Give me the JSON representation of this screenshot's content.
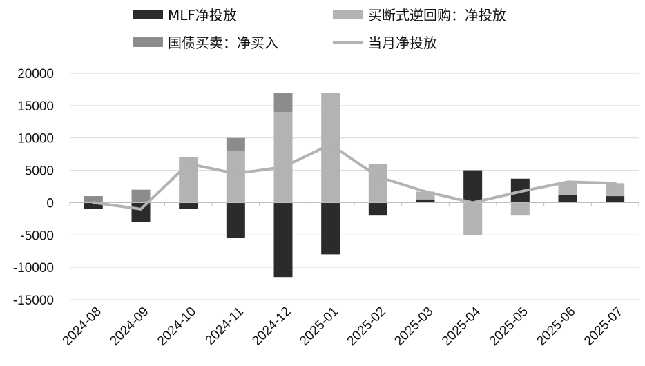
{
  "chart_data": {
    "type": "bar",
    "stacked": true,
    "categories": [
      "2024-08",
      "2024-09",
      "2024-10",
      "2024-11",
      "2024-12",
      "2025-01",
      "2025-02",
      "2025-03",
      "2025-04",
      "2025-05",
      "2025-06",
      "2025-07"
    ],
    "series": [
      {
        "name": "MLF净投放",
        "kind": "bar",
        "color": "#2b2b2b",
        "values": [
          -1000,
          -3000,
          -1000,
          -5500,
          -11500,
          -8000,
          -2000,
          500,
          5000,
          3700,
          1200,
          1000
        ]
      },
      {
        "name": "买断式逆回购：净投放",
        "kind": "bar",
        "color": "#b3b3b3",
        "values": [
          0,
          0,
          7000,
          8000,
          14000,
          17000,
          6000,
          1200,
          -5000,
          -2000,
          2000,
          2000
        ]
      },
      {
        "name": "国债买卖：净买入",
        "kind": "bar",
        "color": "#8c8c8c",
        "values": [
          1000,
          2000,
          0,
          2000,
          3000,
          0,
          0,
          0,
          0,
          0,
          0,
          0
        ]
      },
      {
        "name": "当月净投放",
        "kind": "line",
        "color": "#b3b3b3",
        "values": [
          0,
          -1000,
          6000,
          4500,
          5500,
          9000,
          4000,
          1700,
          0,
          1700,
          3200,
          3000
        ]
      }
    ],
    "ylim": [
      -15000,
      20000
    ],
    "yticks": [
      "20000",
      "15000",
      "10000",
      "5000",
      "0",
      "-5000",
      "-10000",
      "-15000"
    ],
    "ytick_values": [
      20000,
      15000,
      10000,
      5000,
      0,
      -5000,
      -10000,
      -15000
    ],
    "grid": true,
    "legend_position": "top"
  }
}
